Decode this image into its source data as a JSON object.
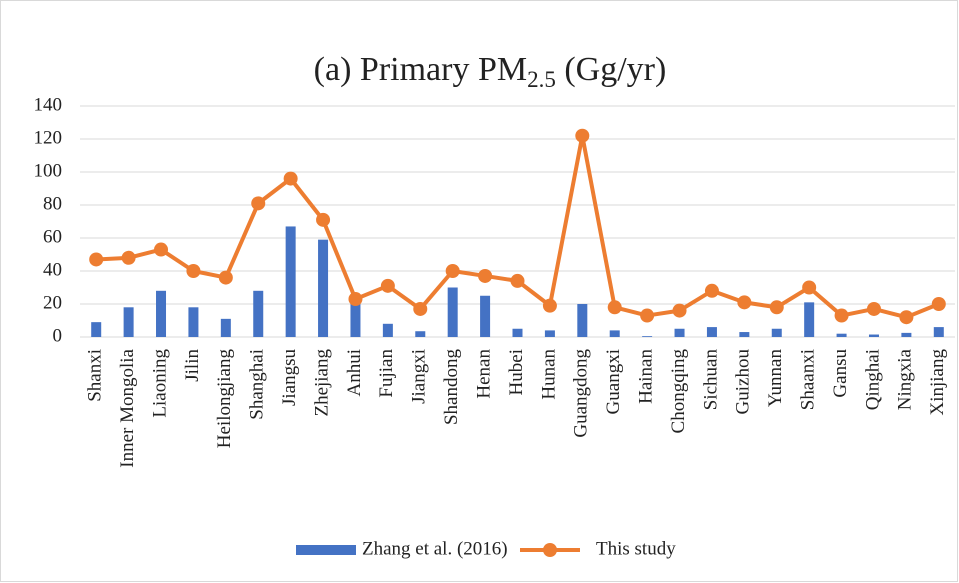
{
  "chart_data": {
    "type": "bar_line",
    "title": [
      "(a) Primary PM",
      "2.5",
      " (Gg/yr)"
    ],
    "categories": [
      "Shanxi",
      "Inner Mongolia",
      "Liaoning",
      "Jilin",
      "Heilongjiang",
      "Shanghai",
      "Jiangsu",
      "Zhejiang",
      "Anhui",
      "Fujian",
      "Jiangxi",
      "Shandong",
      "Henan",
      "Hubei",
      "Hunan",
      "Guangdong",
      "Guangxi",
      "Hainan",
      "Chongqing",
      "Sichuan",
      "Guizhou",
      "Yunnan",
      "Shaanxi",
      "Gansu",
      "Qinghai",
      "Ningxia",
      "Xinjiang"
    ],
    "series": [
      {
        "name": "Zhang et al. (2016)",
        "type": "bar",
        "color": "#4472c4",
        "values": [
          9,
          18,
          28,
          18,
          11,
          28,
          67,
          59,
          20,
          8,
          3.5,
          30,
          25,
          5,
          4,
          20,
          4,
          0.5,
          5,
          6,
          3,
          5,
          21,
          2,
          1.5,
          2.5,
          6
        ]
      },
      {
        "name": "This study",
        "type": "line",
        "color": "#ed7d31",
        "values": [
          47,
          48,
          53,
          40,
          36,
          81,
          96,
          71,
          23,
          31,
          17,
          40,
          37,
          34,
          19,
          122,
          18,
          13,
          16,
          28,
          21,
          18,
          30,
          13,
          17,
          12,
          20
        ]
      }
    ],
    "ylim": [
      0,
      140
    ],
    "yticks": [
      0,
      20,
      40,
      60,
      80,
      100,
      120,
      140
    ],
    "grid": true
  }
}
